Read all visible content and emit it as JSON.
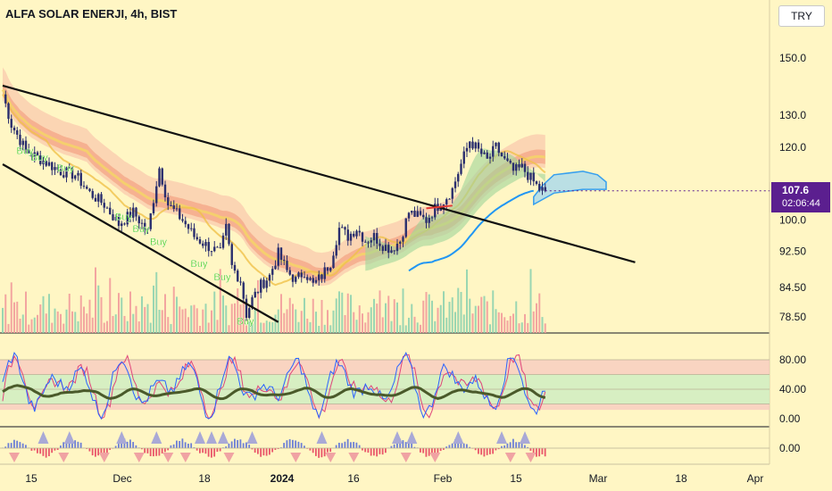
{
  "header": {
    "title": "ALFA SOLAR ENERJI, 4h, BIST",
    "currency": "TRY"
  },
  "price_tag": {
    "price": "107.6",
    "countdown": "02:06:44"
  },
  "colors": {
    "background": "#fff6c4",
    "candle": "#2a2e6e",
    "trendline": "#111111",
    "cloud_outline": "#2196f3",
    "cloud_fill": "#b3dde8",
    "rsi_line": "#4a5a2a",
    "stoch_k": "#2962ff",
    "stoch_d": "#e0457b",
    "buy_label": "#22c400",
    "price_tag": "#5b1f8f"
  },
  "buy_label_text": "Buy",
  "chart_data": [
    {
      "type": "candlestick",
      "title": "ALFA SOLAR ENERJI, 4h, BIST",
      "y_scale": "log",
      "y_ticks": [
        "150.0",
        "130.0",
        "120.0",
        "107.6",
        "100.0",
        "92.50",
        "84.50",
        "78.50"
      ],
      "x_ticks": [
        "15",
        "Dec",
        "18",
        "2024",
        "16",
        "Feb",
        "15",
        "Mar",
        "18",
        "Apr"
      ],
      "last_price": 107.6,
      "close_path": [
        {
          "t": 0,
          "v": 137
        },
        {
          "t": 3,
          "v": 127
        },
        {
          "t": 8,
          "v": 119
        },
        {
          "t": 14,
          "v": 116
        },
        {
          "t": 20,
          "v": 113
        },
        {
          "t": 25,
          "v": 112
        },
        {
          "t": 30,
          "v": 107
        },
        {
          "t": 35,
          "v": 104
        },
        {
          "t": 40,
          "v": 99
        },
        {
          "t": 45,
          "v": 102
        },
        {
          "t": 50,
          "v": 97
        },
        {
          "t": 54,
          "v": 114
        },
        {
          "t": 57,
          "v": 104
        },
        {
          "t": 62,
          "v": 100
        },
        {
          "t": 66,
          "v": 96
        },
        {
          "t": 70,
          "v": 94
        },
        {
          "t": 75,
          "v": 92
        },
        {
          "t": 77,
          "v": 98
        },
        {
          "t": 79,
          "v": 89
        },
        {
          "t": 82,
          "v": 86
        },
        {
          "t": 84,
          "v": 79
        },
        {
          "t": 86,
          "v": 82
        },
        {
          "t": 89,
          "v": 85
        },
        {
          "t": 92,
          "v": 87
        },
        {
          "t": 95,
          "v": 92
        },
        {
          "t": 98,
          "v": 88
        },
        {
          "t": 101,
          "v": 86
        },
        {
          "t": 104,
          "v": 88
        },
        {
          "t": 107,
          "v": 85
        },
        {
          "t": 110,
          "v": 87
        },
        {
          "t": 113,
          "v": 90
        },
        {
          "t": 116,
          "v": 98
        },
        {
          "t": 119,
          "v": 96
        },
        {
          "t": 122,
          "v": 98
        },
        {
          "t": 125,
          "v": 95
        },
        {
          "t": 128,
          "v": 96
        },
        {
          "t": 131,
          "v": 94
        },
        {
          "t": 134,
          "v": 93
        },
        {
          "t": 137,
          "v": 95
        },
        {
          "t": 140,
          "v": 102
        },
        {
          "t": 143,
          "v": 101
        },
        {
          "t": 146,
          "v": 100
        },
        {
          "t": 149,
          "v": 103
        },
        {
          "t": 152,
          "v": 105
        },
        {
          "t": 155,
          "v": 108
        },
        {
          "t": 158,
          "v": 115
        },
        {
          "t": 161,
          "v": 122
        },
        {
          "t": 164,
          "v": 119
        },
        {
          "t": 167,
          "v": 116
        },
        {
          "t": 170,
          "v": 120
        },
        {
          "t": 173,
          "v": 116
        },
        {
          "t": 176,
          "v": 113
        },
        {
          "t": 179,
          "v": 114
        },
        {
          "t": 182,
          "v": 111
        },
        {
          "t": 185,
          "v": 108
        },
        {
          "t": 187,
          "v": 107.6
        }
      ],
      "trendlines": [
        {
          "name": "upper",
          "from": {
            "t": 0,
            "v": 140
          },
          "to": {
            "t": 218,
            "v": 90
          }
        },
        {
          "name": "lower",
          "from": {
            "t": 0,
            "v": 115
          },
          "to": {
            "t": 95,
            "v": 77.5
          }
        },
        {
          "name": "resistance",
          "from": {
            "t": 146,
            "v": 103
          },
          "to": {
            "t": 155,
            "v": 103.7
          }
        }
      ],
      "cloud_future": {
        "upper": [
          {
            "t": 183,
            "v": 106
          },
          {
            "t": 186,
            "v": 109
          },
          {
            "t": 190,
            "v": 112
          },
          {
            "t": 200,
            "v": 113
          },
          {
            "t": 205,
            "v": 112
          },
          {
            "t": 208,
            "v": 110
          }
        ],
        "lower": [
          {
            "t": 183,
            "v": 104
          },
          {
            "t": 190,
            "v": 107
          },
          {
            "t": 200,
            "v": 108
          },
          {
            "t": 208,
            "v": 108
          }
        ]
      }
    },
    {
      "type": "line",
      "name": "oscillator",
      "y_ticks": [
        "80.00",
        "40.00",
        "0.00"
      ],
      "levels": [
        80,
        60,
        40,
        20
      ]
    },
    {
      "type": "bar",
      "name": "histogram",
      "y_ticks": [
        "0.00"
      ],
      "zero": 0
    }
  ]
}
